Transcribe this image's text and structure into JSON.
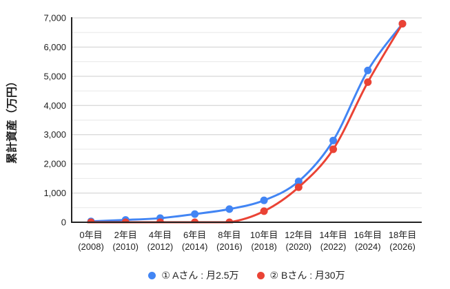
{
  "chart_data": {
    "type": "line",
    "title": "",
    "xlabel": "",
    "ylabel": "累計資産（万円）",
    "grid": true,
    "legend_position": "bottom",
    "x": [
      {
        "top": "0年目",
        "bottom": "(2008)"
      },
      {
        "top": "2年目",
        "bottom": "(2010)"
      },
      {
        "top": "4年目",
        "bottom": "(2012)"
      },
      {
        "top": "6年目",
        "bottom": "(2014)"
      },
      {
        "top": "8年目",
        "bottom": "(2016)"
      },
      {
        "top": "10年目",
        "bottom": "(2018)"
      },
      {
        "top": "12年目",
        "bottom": "(2020)"
      },
      {
        "top": "14年目",
        "bottom": "(2022)"
      },
      {
        "top": "16年目",
        "bottom": "(2024)"
      },
      {
        "top": "18年目",
        "bottom": "(2026)"
      }
    ],
    "y_axis": {
      "min": 0,
      "max": 7000,
      "major_step": 1000,
      "minor_step": 500,
      "tick_labels": [
        "0",
        "1,000",
        "2,000",
        "3,000",
        "4,000",
        "5,000",
        "6,000",
        "7,000"
      ]
    },
    "series": [
      {
        "name": "① Aさん : 月2.5万",
        "color": "#4285F4",
        "values": [
          30,
          80,
          140,
          280,
          450,
          750,
          1400,
          2800,
          5200,
          6800
        ]
      },
      {
        "name": "② Bさん : 月30万",
        "color": "#EA4335",
        "values": [
          0,
          0,
          0,
          0,
          0,
          380,
          1200,
          2500,
          4800,
          6800
        ]
      }
    ],
    "colors": {
      "axis_line": "#212121",
      "major_gridline": "#cdcdcd",
      "minor_gridline": "#e8e8e8",
      "tick_text": "#1f1f1f"
    }
  }
}
